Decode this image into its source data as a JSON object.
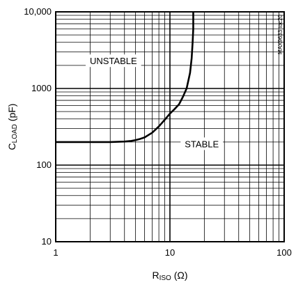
{
  "chart_data": {
    "type": "line",
    "title": "",
    "x_scale": "log",
    "y_scale": "log",
    "xlim": [
      1,
      100
    ],
    "ylim": [
      10,
      10000
    ],
    "grid": true,
    "x_ticks": [
      "1",
      "10",
      "100"
    ],
    "y_ticks": [
      "10",
      "100",
      "1000",
      "10,000"
    ],
    "xlabel": {
      "main": "R",
      "sub": "ISO",
      "unit": " (Ω)"
    },
    "ylabel": {
      "main": "C",
      "sub": "LOAD",
      "unit": " (pF)"
    },
    "annotations": [
      "UNSTABLE",
      "STABLE"
    ],
    "figure_ref": "MAX9633 toc20",
    "colors": {
      "line": "#000000",
      "grid": "#000000"
    },
    "series": [
      {
        "x": [
          1,
          2,
          3,
          4,
          4.5,
          5,
          5.5,
          6,
          7,
          8,
          9,
          10,
          11,
          12,
          13,
          14,
          15,
          15.5,
          15.8,
          16,
          16
        ],
        "y": [
          200,
          200,
          200,
          203,
          206,
          212,
          220,
          230,
          265,
          320,
          390,
          470,
          540,
          620,
          780,
          1000,
          1600,
          2500,
          4000,
          6000,
          10000
        ]
      }
    ]
  }
}
